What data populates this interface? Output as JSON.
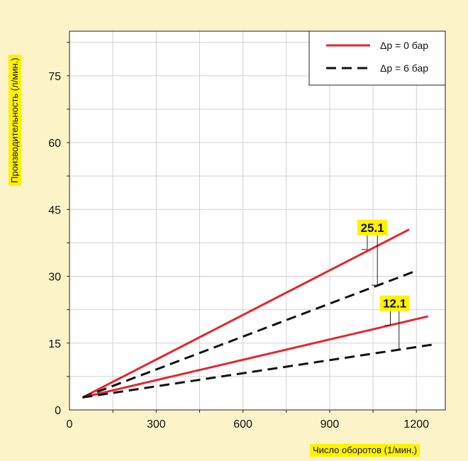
{
  "colors": {
    "background": "#fdf3c8",
    "plot_background": "#ffffff",
    "grid": "#d0d0d0",
    "axis": "#222222",
    "highlight": "#fff200",
    "red_series": "#e3262f",
    "black_series": "#111111"
  },
  "chart_data": {
    "type": "line",
    "title": "",
    "xlabel": "Число оборотов (1/мин.)",
    "ylabel": "Производительность (л/мин.)",
    "xlim": [
      0,
      1300
    ],
    "ylim": [
      0,
      85
    ],
    "xticks": [
      0,
      300,
      600,
      900,
      1200
    ],
    "yticks": [
      0,
      15,
      30,
      45,
      60,
      75
    ],
    "grid": true,
    "legend": {
      "position": "top-right",
      "entries": [
        {
          "label": "Δp = 0 бар",
          "style": "solid",
          "color": "#e3262f"
        },
        {
          "label": "Δp = 6 бар",
          "style": "dashed",
          "color": "#111111"
        }
      ]
    },
    "series": [
      {
        "group": "25.1",
        "style": "solid",
        "color": "#e3262f",
        "x": [
          45,
          1175
        ],
        "y": [
          2.8,
          40.5
        ]
      },
      {
        "group": "25.1",
        "style": "dashed",
        "color": "#111111",
        "x": [
          45,
          1190
        ],
        "y": [
          2.8,
          31.0
        ]
      },
      {
        "group": "12.1",
        "style": "solid",
        "color": "#e3262f",
        "x": [
          45,
          1240
        ],
        "y": [
          2.8,
          21.0
        ]
      },
      {
        "group": "12.1",
        "style": "dashed",
        "color": "#111111",
        "x": [
          45,
          1270
        ],
        "y": [
          2.8,
          14.8
        ]
      }
    ],
    "annotations": [
      {
        "text": "25.1",
        "points_to": [
          [
            1030,
            36
          ],
          [
            1065,
            28
          ]
        ]
      },
      {
        "text": "12.1",
        "points_to": [
          [
            1110,
            19
          ],
          [
            1140,
            13.5
          ]
        ]
      }
    ]
  }
}
